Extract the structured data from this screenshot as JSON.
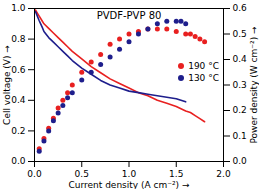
{
  "chart_data": {
    "type": "line",
    "title": "PVDF-PVP 80",
    "xlabel": "Current density (A cm⁻²)",
    "ylabel": "Cell voltage (V)",
    "y2label": "Power density (W cm⁻²)",
    "xlim": [
      0.0,
      2.0
    ],
    "ylim": [
      0.0,
      1.0
    ],
    "y2lim": [
      0.0,
      0.6
    ],
    "xticks": [
      {
        "value": 0.0,
        "label": "0.0"
      },
      0.5,
      {
        "value": 1.0,
        "label": "1.0"
      },
      1.5,
      {
        "value": 2.0,
        "label": "2.0"
      }
    ],
    "yticks": [
      {
        "value": 0.0,
        "label": "0.0"
      },
      0.2,
      0.4,
      0.6,
      0.8,
      {
        "value": 1.0,
        "label": "1.0"
      }
    ],
    "y2ticks": [
      {
        "value": 0.0,
        "label": "0.0"
      },
      0.1,
      0.2,
      0.3,
      0.4,
      0.5,
      0.6
    ],
    "grid": false,
    "legend": "right",
    "series": [
      {
        "name": "190 °C",
        "type": "line",
        "color": "#e82020",
        "x": [
          0.01,
          0.03,
          0.05,
          0.08,
          0.1,
          0.15,
          0.2,
          0.25,
          0.3,
          0.35,
          0.4,
          0.5,
          0.6,
          0.7,
          0.8,
          0.9,
          1.0,
          1.1,
          1.2,
          1.3,
          1.4,
          1.5,
          1.6,
          1.65,
          1.7,
          1.75,
          1.8
        ],
        "values": [
          0.99,
          0.97,
          0.95,
          0.92,
          0.9,
          0.87,
          0.84,
          0.81,
          0.78,
          0.75,
          0.72,
          0.67,
          0.62,
          0.58,
          0.54,
          0.51,
          0.48,
          0.45,
          0.43,
          0.4,
          0.38,
          0.36,
          0.33,
          0.32,
          0.3,
          0.28,
          0.26
        ]
      },
      {
        "name": "130 °C",
        "type": "line",
        "color": "#1e1e8c",
        "x": [
          0.01,
          0.03,
          0.05,
          0.08,
          0.1,
          0.15,
          0.2,
          0.25,
          0.3,
          0.35,
          0.4,
          0.5,
          0.6,
          0.7,
          0.8,
          0.9,
          1.0,
          1.1,
          1.2,
          1.3,
          1.4,
          1.5,
          1.55,
          1.6
        ],
        "values": [
          0.98,
          0.95,
          0.92,
          0.88,
          0.85,
          0.81,
          0.78,
          0.75,
          0.72,
          0.69,
          0.66,
          0.61,
          0.57,
          0.53,
          0.5,
          0.48,
          0.46,
          0.45,
          0.44,
          0.43,
          0.42,
          0.41,
          0.4,
          0.39
        ]
      },
      {
        "name": "190 °C",
        "type": "scatter",
        "marker": "circle",
        "axis": "y2",
        "color": "#e82020",
        "x": [
          0.05,
          0.1,
          0.15,
          0.2,
          0.25,
          0.3,
          0.35,
          0.4,
          0.5,
          0.6,
          0.7,
          0.8,
          0.9,
          1.0,
          1.1,
          1.2,
          1.3,
          1.4,
          1.5,
          1.6,
          1.65,
          1.7,
          1.75,
          1.8
        ],
        "values": [
          0.05,
          0.09,
          0.13,
          0.17,
          0.21,
          0.24,
          0.27,
          0.3,
          0.35,
          0.39,
          0.42,
          0.46,
          0.48,
          0.5,
          0.51,
          0.52,
          0.52,
          0.52,
          0.51,
          0.5,
          0.5,
          0.49,
          0.48,
          0.47
        ]
      },
      {
        "name": "130 °C",
        "type": "scatter",
        "marker": "circle",
        "axis": "y2",
        "color": "#1e1e8c",
        "x": [
          0.05,
          0.1,
          0.15,
          0.2,
          0.25,
          0.3,
          0.35,
          0.4,
          0.5,
          0.6,
          0.7,
          0.8,
          0.9,
          1.0,
          1.1,
          1.2,
          1.3,
          1.4,
          1.5,
          1.55,
          1.6
        ],
        "values": [
          0.04,
          0.08,
          0.12,
          0.16,
          0.19,
          0.22,
          0.25,
          0.27,
          0.32,
          0.35,
          0.38,
          0.41,
          0.44,
          0.47,
          0.5,
          0.52,
          0.54,
          0.55,
          0.55,
          0.55,
          0.54
        ]
      }
    ]
  }
}
